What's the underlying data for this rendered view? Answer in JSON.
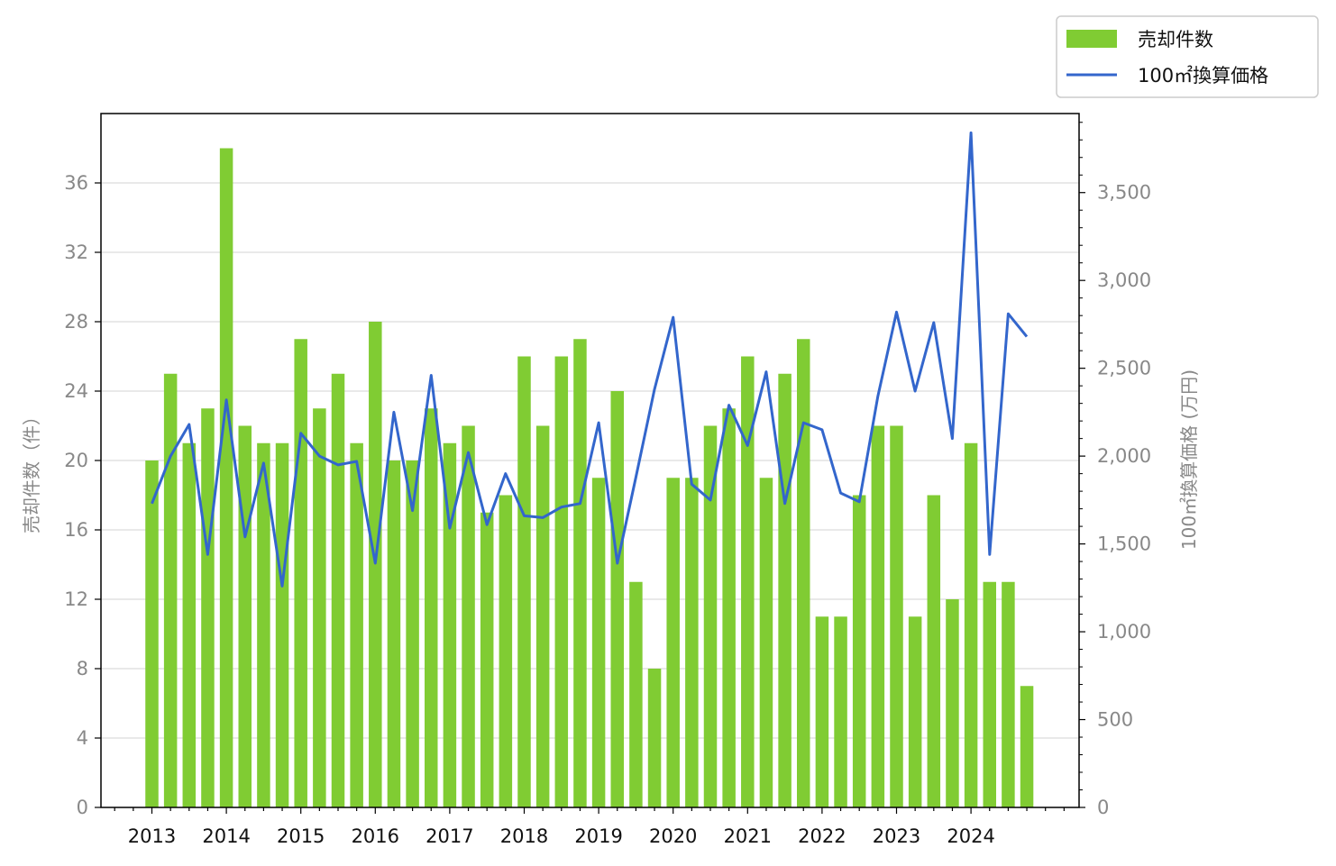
{
  "chart_data": {
    "type": "bar",
    "x_year_labels": [
      "2013",
      "2014",
      "2015",
      "2016",
      "2017",
      "2018",
      "2019",
      "2020",
      "2021",
      "2022",
      "2023",
      "2024"
    ],
    "y_left": {
      "label": "売却件数（件）",
      "ylim": [
        0,
        40
      ],
      "ticks": [
        0,
        4,
        8,
        12,
        16,
        20,
        24,
        28,
        32,
        36
      ]
    },
    "y_right": {
      "label": "100㎡換算価格 (万円)",
      "ylim": [
        0,
        3950
      ],
      "ticks": [
        0,
        500,
        1000,
        1500,
        2000,
        2500,
        3000,
        3500
      ],
      "tick_labels": [
        "0",
        "500",
        "1,000",
        "1,500",
        "2,000",
        "2,500",
        "3,000",
        "3,500"
      ]
    },
    "grid": "horizontal (left axis)",
    "legend": "top-right, outside plot",
    "series": [
      {
        "name": "売却件数",
        "type": "bar",
        "axis": "left",
        "color": "#80cc33",
        "values": [
          20,
          25,
          21,
          23,
          38,
          22,
          21,
          21,
          27,
          23,
          25,
          21,
          28,
          20,
          20,
          23,
          21,
          22,
          17,
          18,
          26,
          22,
          26,
          27,
          19,
          24,
          13,
          8,
          19,
          19,
          22,
          23,
          26,
          19,
          25,
          27,
          11,
          11,
          18,
          22,
          22,
          11,
          18,
          12,
          21,
          13,
          13,
          7
        ]
      },
      {
        "name": "100㎡換算価格",
        "type": "line",
        "axis": "right",
        "color": "#3366cc",
        "values": [
          1730,
          2000,
          2180,
          1440,
          2320,
          1540,
          1960,
          1260,
          2130,
          2000,
          1950,
          1970,
          1390,
          2250,
          1690,
          2460,
          1590,
          2020,
          1610,
          1900,
          1660,
          1650,
          1710,
          1730,
          2190,
          1390,
          1880,
          2380,
          2790,
          1840,
          1750,
          2290,
          2060,
          2480,
          1730,
          2190,
          2150,
          1790,
          1740,
          2340,
          2820,
          2370,
          2760,
          2100,
          3840,
          1440,
          2810,
          2680
        ]
      }
    ]
  }
}
